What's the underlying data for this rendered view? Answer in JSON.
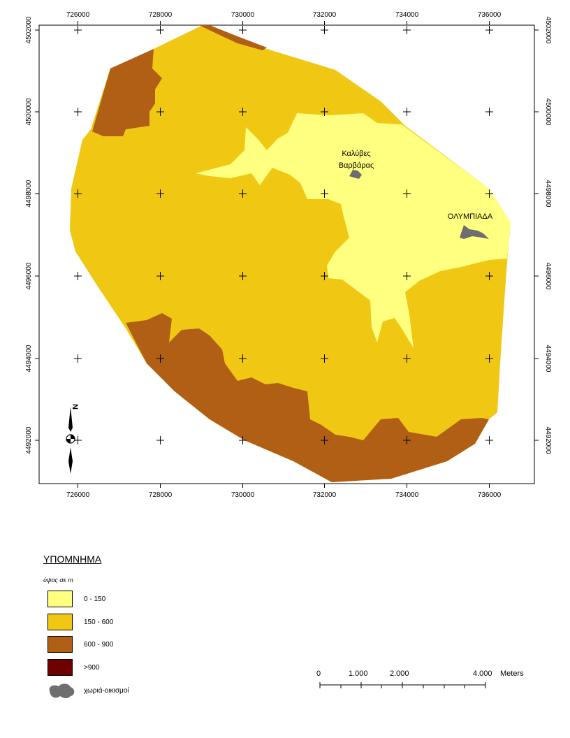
{
  "map": {
    "x_ticks": [
      "726000",
      "728000",
      "730000",
      "732000",
      "734000",
      "736000"
    ],
    "y_ticks": [
      "4502000",
      "4500000",
      "4498000",
      "4496000",
      "4494000",
      "4492000"
    ],
    "north_label": "N",
    "places": [
      {
        "line1": "Καλύβες",
        "line2": "Βαρβάρας"
      },
      {
        "line1": "ΟΛΥΜΠΙΑΔΑ"
      }
    ]
  },
  "legend": {
    "title": "ΥΠΟΜΝΗΜΑ",
    "subtitle": "ύψος σε m",
    "items": [
      {
        "label": "0 - 150",
        "color": "#ffff80"
      },
      {
        "label": "150 - 600",
        "color": "#f0c814"
      },
      {
        "label": "600 - 900",
        "color": "#b05f14"
      },
      {
        "label": ">900",
        "color": "#6e0000"
      },
      {
        "label": "χωριά-οικισμοί",
        "color": "#6e6e6e"
      }
    ]
  },
  "scale_bar": {
    "labels": [
      "0",
      "1.000",
      "2.000",
      "4.000"
    ],
    "unit": "Meters"
  },
  "colors": {
    "low": "#ffff80",
    "mid": "#f0c814",
    "high": "#b05f14",
    "highest": "#6e0000",
    "village": "#6e6e6e"
  }
}
